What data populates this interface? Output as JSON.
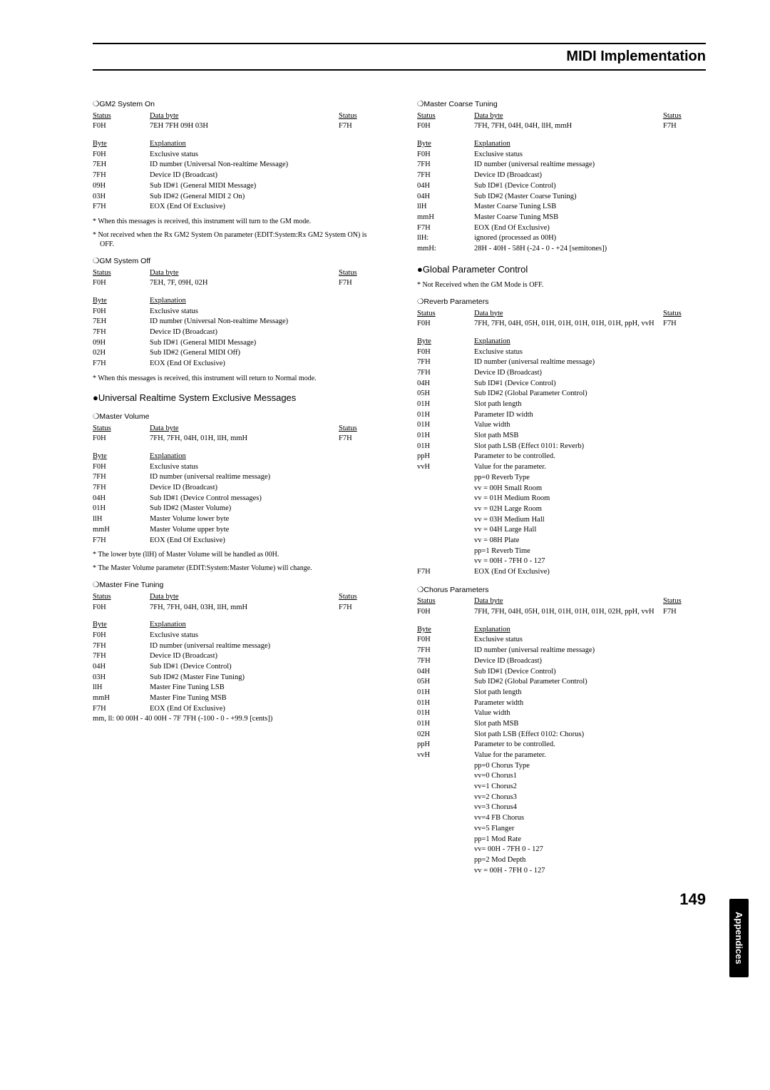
{
  "header": {
    "title": "MIDI Implementation"
  },
  "page_number": "149",
  "side_tab": "Appendices",
  "left": {
    "gm2_on": {
      "title": "❍GM2 System On",
      "hdr": {
        "status": "Status",
        "data": "Data byte",
        "st2": "Status"
      },
      "line": {
        "status": "F0H",
        "data": "7EH 7FH 09H 03H",
        "st2": "F7H"
      },
      "exp_hdr": {
        "byte": "Byte",
        "exp": "Explanation"
      },
      "exp": [
        [
          "F0H",
          "Exclusive status"
        ],
        [
          "7EH",
          "ID number (Universal Non-realtime Message)"
        ],
        [
          "7FH",
          "Device ID (Broadcast)"
        ],
        [
          "09H",
          "Sub ID#1 (General MIDI Message)"
        ],
        [
          "03H",
          "Sub ID#2 (General MIDI 2 On)"
        ],
        [
          "F7H",
          "EOX (End Of Exclusive)"
        ]
      ],
      "notes": [
        "* When this messages is received, this instrument will turn to the GM mode.",
        "* Not received when the Rx GM2 System On parameter (EDIT:System:Rx GM2 System ON) is OFF."
      ]
    },
    "gm_off": {
      "title": "❍GM System Off",
      "hdr": {
        "status": "Status",
        "data": "Data byte",
        "st2": "Status"
      },
      "line": {
        "status": "F0H",
        "data": "7EH, 7F, 09H, 02H",
        "st2": "F7H"
      },
      "exp_hdr": {
        "byte": "Byte",
        "exp": "Explanation"
      },
      "exp": [
        [
          "F0H",
          "Exclusive status"
        ],
        [
          "7EH",
          "ID number (Universal Non-realtime Message)"
        ],
        [
          "7FH",
          "Device ID (Broadcast)"
        ],
        [
          "09H",
          "Sub ID#1 (General MIDI Message)"
        ],
        [
          "02H",
          "Sub ID#2 (General MIDI Off)"
        ],
        [
          "F7H",
          "EOX (End Of Exclusive)"
        ]
      ],
      "notes": [
        "* When this messages is received, this instrument will return to Normal mode."
      ]
    },
    "urse": {
      "title": "●Universal Realtime System Exclusive Messages"
    },
    "mv": {
      "title": "❍Master Volume",
      "hdr": {
        "status": "Status",
        "data": "Data byte",
        "st2": "Status"
      },
      "line": {
        "status": "F0H",
        "data": "7FH, 7FH, 04H, 01H, llH, mmH",
        "st2": "F7H"
      },
      "exp_hdr": {
        "byte": "Byte",
        "exp": "Explanation"
      },
      "exp": [
        [
          "F0H",
          "Exclusive status"
        ],
        [
          "7FH",
          "ID number (universal realtime message)"
        ],
        [
          "7FH",
          "Device ID (Broadcast)"
        ],
        [
          "04H",
          "Sub ID#1 (Device Control messages)"
        ],
        [
          "01H",
          "Sub ID#2 (Master Volume)"
        ],
        [
          "llH",
          "Master Volume lower byte"
        ],
        [
          "mmH",
          "Master Volume upper byte"
        ],
        [
          "F7H",
          "EOX (End Of Exclusive)"
        ]
      ],
      "notes": [
        "* The lower byte (llH) of Master Volume will be handled as 00H.",
        "* The Master Volume parameter (EDIT:System:Master Volume) will change."
      ]
    },
    "mft": {
      "title": "❍Master Fine Tuning",
      "hdr": {
        "status": "Status",
        "data": "Data byte",
        "st2": "Status"
      },
      "line": {
        "status": "F0H",
        "data": "7FH, 7FH, 04H, 03H, llH, mmH",
        "st2": "F7H"
      },
      "exp_hdr": {
        "byte": "Byte",
        "exp": "Explanation"
      },
      "exp": [
        [
          "F0H",
          "Exclusive status"
        ],
        [
          "7FH",
          "ID number (universal realtime message)"
        ],
        [
          "7FH",
          "Device ID (Broadcast)"
        ],
        [
          "04H",
          "Sub ID#1 (Device Control)"
        ],
        [
          "03H",
          "Sub ID#2 (Master Fine Tuning)"
        ],
        [
          "llH",
          "Master Fine Tuning LSB"
        ],
        [
          "mmH",
          "Master Fine Tuning MSB"
        ],
        [
          "F7H",
          "EOX (End Of Exclusive)"
        ]
      ],
      "tail": "mm, ll: 00 00H - 40 00H - 7F 7FH (-100 - 0 - +99.9 [cents])"
    }
  },
  "right": {
    "mct": {
      "title": "❍Master Coarse Tuning",
      "hdr": {
        "status": "Status",
        "data": "Data byte",
        "st2": "Status"
      },
      "line": {
        "status": "F0H",
        "data": "7FH, 7FH, 04H, 04H, llH, mmH",
        "st2": "F7H"
      },
      "exp_hdr": {
        "byte": "Byte",
        "exp": "Explanation"
      },
      "exp": [
        [
          "F0H",
          "Exclusive status"
        ],
        [
          "7FH",
          "ID number (universal realtime message)"
        ],
        [
          "7FH",
          "Device ID (Broadcast)"
        ],
        [
          "04H",
          "Sub ID#1 (Device Control)"
        ],
        [
          "04H",
          "Sub ID#2 (Master Coarse Tuning)"
        ],
        [
          "llH",
          "Master Coarse Tuning LSB"
        ],
        [
          "mmH",
          "Master Coarse Tuning MSB"
        ],
        [
          "F7H",
          "EOX (End Of Exclusive)"
        ],
        [
          "llH:",
          "ignored (processed as 00H)"
        ],
        [
          "mmH:",
          "28H - 40H - 58H (-24 - 0 - +24 [semitones])"
        ]
      ]
    },
    "gpc": {
      "title": "●Global Parameter Control",
      "notes": [
        "* Not Received when the GM Mode is OFF."
      ]
    },
    "rev": {
      "title": "❍Reverb Parameters",
      "hdr": {
        "status": "Status",
        "data": "Data byte",
        "st2": "Status"
      },
      "line": {
        "status": "F0H",
        "data": "7FH, 7FH, 04H, 05H, 01H, 01H, 01H, 01H, 01H, ppH, vvH",
        "st2": "F7H"
      },
      "exp_hdr": {
        "byte": "Byte",
        "exp": "Explanation"
      },
      "exp": [
        [
          "F0H",
          "Exclusive status"
        ],
        [
          "7FH",
          "ID number (universal realtime message)"
        ],
        [
          "7FH",
          "Device ID (Broadcast)"
        ],
        [
          "04H",
          "Sub ID#1 (Device Control)"
        ],
        [
          "05H",
          "Sub ID#2 (Global Parameter Control)"
        ],
        [
          "01H",
          "Slot path length"
        ],
        [
          "01H",
          "Parameter ID width"
        ],
        [
          "01H",
          "Value width"
        ],
        [
          "01H",
          "Slot path MSB"
        ],
        [
          "01H",
          "Slot path LSB (Effect 0101: Reverb)"
        ],
        [
          "ppH",
          "Parameter to be controlled."
        ],
        [
          "vvH",
          "Value for the parameter."
        ],
        [
          "",
          "pp=0 Reverb Type"
        ],
        [
          "",
          "vv = 00H Small Room"
        ],
        [
          "",
          "vv = 01H Medium Room"
        ],
        [
          "",
          "vv = 02H Large Room"
        ],
        [
          "",
          "vv = 03H Medium Hall"
        ],
        [
          "",
          "vv = 04H Large Hall"
        ],
        [
          "",
          "vv = 08H Plate"
        ],
        [
          "",
          "pp=1 Reverb Time"
        ],
        [
          "",
          "vv = 00H - 7FH 0 - 127"
        ],
        [
          "F7H",
          "EOX (End Of Exclusive)"
        ]
      ]
    },
    "cho": {
      "title": "❍Chorus Parameters",
      "hdr": {
        "status": "Status",
        "data": "Data byte",
        "st2": "Status"
      },
      "line": {
        "status": "F0H",
        "data": "7FH, 7FH, 04H, 05H, 01H, 01H, 01H, 01H, 02H, ppH, vvH",
        "st2": "F7H"
      },
      "exp_hdr": {
        "byte": "Byte",
        "exp": "Explanation"
      },
      "exp": [
        [
          "F0H",
          "Exclusive status"
        ],
        [
          "7FH",
          "ID number (universal realtime message)"
        ],
        [
          "7FH",
          "Device ID (Broadcast)"
        ],
        [
          "04H",
          "Sub ID#1 (Device Control)"
        ],
        [
          "05H",
          "Sub ID#2 (Global Parameter Control)"
        ],
        [
          "01H",
          "Slot path length"
        ],
        [
          "01H",
          "Parameter width"
        ],
        [
          "01H",
          "Value width"
        ],
        [
          "01H",
          "Slot path MSB"
        ],
        [
          "02H",
          "Slot path LSB (Effect 0102: Chorus)"
        ],
        [
          "ppH",
          "Parameter to be controlled."
        ],
        [
          "vvH",
          "Value for the parameter."
        ],
        [
          "",
          "pp=0 Chorus Type"
        ],
        [
          "",
          "vv=0 Chorus1"
        ],
        [
          "",
          "vv=1 Chorus2"
        ],
        [
          "",
          "vv=2 Chorus3"
        ],
        [
          "",
          "vv=3 Chorus4"
        ],
        [
          "",
          "vv=4 FB Chorus"
        ],
        [
          "",
          "vv=5 Flanger"
        ],
        [
          "",
          "pp=1 Mod Rate"
        ],
        [
          "",
          "vv= 00H - 7FH 0 - 127"
        ],
        [
          "",
          "pp=2 Mod Depth"
        ],
        [
          "",
          "vv = 00H - 7FH 0 - 127"
        ]
      ]
    }
  }
}
